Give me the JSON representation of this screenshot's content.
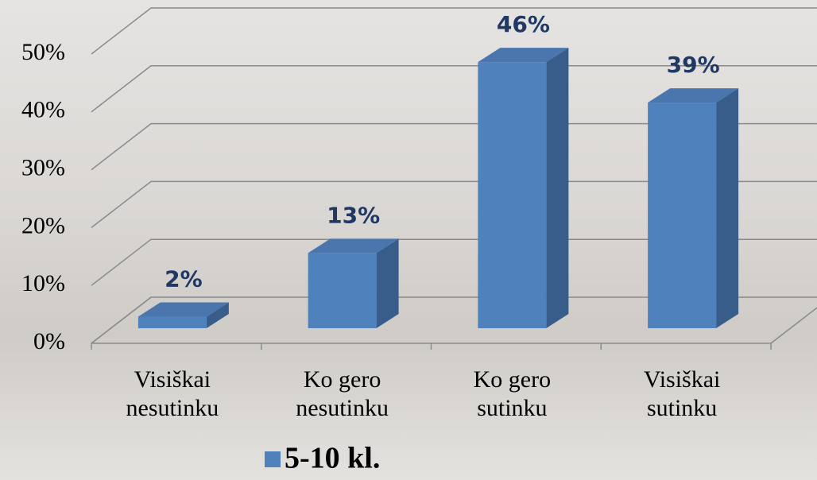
{
  "chart_data": {
    "type": "bar3d",
    "categories": [
      "Visiškai nesutinku",
      "Ko gero nesutinku",
      "Ko gero sutinku",
      "Visiškai sutinku"
    ],
    "series": [
      {
        "name": "5-10 kl.",
        "color": "#4f81bd",
        "values": [
          2,
          13,
          46,
          39
        ],
        "value_labels": [
          "2%",
          "13%",
          "46%",
          "39%"
        ]
      }
    ],
    "ylim": [
      0,
      50
    ],
    "yticks": [
      {
        "value": 0,
        "label": "0%"
      },
      {
        "value": 10,
        "label": "10%"
      },
      {
        "value": 20,
        "label": "20%"
      },
      {
        "value": 30,
        "label": "30%"
      },
      {
        "value": 40,
        "label": "40%"
      },
      {
        "value": 50,
        "label": "50%"
      }
    ],
    "grid": true,
    "legend": "bottom"
  }
}
